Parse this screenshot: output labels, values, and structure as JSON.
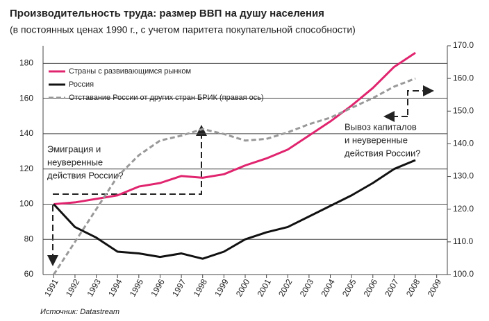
{
  "chart_data": {
    "type": "line",
    "title": "Производительность труда: размер ВВП на душу населения",
    "subtitle": "(в постоянных ценах 1990 г., с учетом паритета покупательной способности)",
    "x": [
      1991,
      1992,
      1993,
      1994,
      1995,
      1996,
      1997,
      1998,
      1999,
      2000,
      2001,
      2002,
      2003,
      2004,
      2005,
      2006,
      2007,
      2008
    ],
    "series": [
      {
        "name": "Страны с развивающимся рынком",
        "color": "#e0246e",
        "values": [
          100,
          101,
          103,
          105,
          110,
          112,
          116,
          115,
          117,
          122,
          126,
          131,
          139,
          147,
          156,
          166,
          178,
          186
        ]
      },
      {
        "name": "Россия",
        "color": "#111111",
        "values": [
          100,
          87,
          81,
          73,
          72,
          70,
          72,
          69,
          73,
          80,
          84,
          87,
          93,
          99,
          105,
          112,
          120,
          125
        ]
      },
      {
        "name": "Отставание России от других стран БРИК (правая ось)",
        "color": "#999999",
        "axis": "y2",
        "dashed": true,
        "values": [
          100,
          110,
          120,
          130,
          136.5,
          141,
          142.5,
          144.5,
          143,
          141,
          141.5,
          143.5,
          146,
          148,
          151,
          154,
          157.5,
          160
        ]
      }
    ],
    "xlim": [
      1990.5,
      2009.5
    ],
    "xticks": [
      1991,
      1992,
      1993,
      1994,
      1995,
      1996,
      1997,
      1998,
      1999,
      2000,
      2001,
      2002,
      2003,
      2004,
      2005,
      2006,
      2007,
      2008,
      2009
    ],
    "ylim": [
      60,
      190
    ],
    "yticks": [
      60,
      80,
      100,
      120,
      140,
      160,
      180
    ],
    "y2lim": [
      100,
      170
    ],
    "y2ticks": [
      {
        "value": 100,
        "label": "100.0"
      },
      {
        "value": 110,
        "label": "110.0"
      },
      {
        "value": 120,
        "label": "120.0"
      },
      {
        "value": 130,
        "label": "130.0"
      },
      {
        "value": 140,
        "label": "140.0"
      },
      {
        "value": 150,
        "label": "150.0"
      },
      {
        "value": 160,
        "label": "160.0"
      },
      {
        "value": 170,
        "label": "170.0"
      }
    ],
    "grid": true,
    "legend": "top-left",
    "annotations": [
      "Эмиграция и",
      "неуверенные",
      "действия России?",
      "Вывоз капиталов",
      "и неуверенные",
      "действия России?"
    ],
    "source": "Источник: Datastream"
  }
}
